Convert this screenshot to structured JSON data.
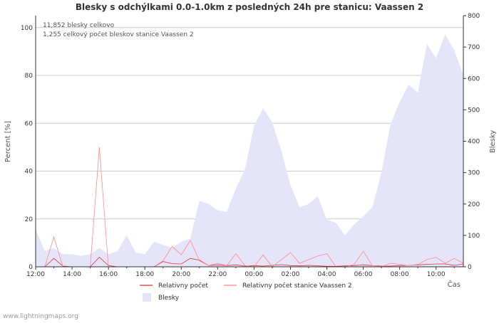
{
  "chart_data": {
    "type": "line",
    "title": "Blesky s odchýlkami 0.0-1.0km z posledných 24h pre stanicu: Vaassen 2",
    "annotations": [
      "11,852 blesky celkovo",
      "1,255 celkový počet bleskov stanice Vaassen 2"
    ],
    "ylabel_left": "Percent   [%]",
    "ylabel_right": "Blesky",
    "xlabel": "Čas",
    "x_tick_labels": [
      "12:00",
      "14:00",
      "16:00",
      "18:00",
      "20:00",
      "22:00",
      "00:00",
      "02:00",
      "04:00",
      "06:00",
      "08:00",
      "10:00"
    ],
    "y_left_ticks": [
      "0",
      "20",
      "40",
      "60",
      "80",
      "100"
    ],
    "y_right_ticks": [
      "0",
      "100",
      "200",
      "300",
      "400",
      "500",
      "600",
      "700",
      "800"
    ],
    "ylim_left": [
      0,
      105
    ],
    "ylim_right": [
      0,
      800
    ],
    "x_range_hours": [
      0,
      23.5
    ],
    "series": [
      {
        "name": "Blesky",
        "kind": "area",
        "axis": "right",
        "color": "#e5e5fa",
        "x": [
          0,
          0.5,
          1,
          1.5,
          2,
          2.5,
          3,
          3.5,
          4,
          4.5,
          5,
          5.5,
          6,
          6.5,
          7,
          7.5,
          8,
          8.5,
          9,
          9.5,
          10,
          10.5,
          11,
          11.5,
          12,
          12.5,
          13,
          13.5,
          14,
          14.5,
          15,
          15.5,
          16,
          16.5,
          17,
          17.5,
          18,
          18.5,
          19,
          19.5,
          20,
          20.5,
          21,
          21.5,
          22,
          22.5,
          23,
          23.5
        ],
        "values": [
          120,
          50,
          60,
          40,
          40,
          35,
          40,
          60,
          40,
          50,
          100,
          45,
          40,
          80,
          70,
          60,
          80,
          90,
          210,
          200,
          180,
          175,
          250,
          310,
          450,
          505,
          460,
          370,
          260,
          190,
          200,
          225,
          150,
          140,
          100,
          135,
          160,
          190,
          300,
          455,
          525,
          580,
          555,
          710,
          665,
          740,
          690,
          610
        ]
      },
      {
        "name": "Relativny počet",
        "kind": "line",
        "axis": "left",
        "color": "#e03030",
        "x": [
          0.5,
          1,
          1.5,
          2,
          2.5,
          3,
          3.5,
          4,
          4.5,
          5,
          5.5,
          6,
          6.5,
          7,
          7.5,
          8,
          8.5,
          9,
          9.5,
          10,
          10.5,
          11,
          11.5,
          12,
          12.5,
          13,
          13.5,
          14,
          14.5,
          15,
          15.5,
          16,
          16.5,
          17,
          17.5,
          18,
          18.5,
          19,
          19.5,
          20,
          20.5,
          21,
          21.5,
          22,
          22.5,
          23,
          23.5
        ],
        "values": [
          0,
          3.5,
          0.3,
          0,
          0,
          0,
          4,
          0.5,
          0,
          0,
          0,
          0,
          0,
          2.2,
          1.3,
          1.2,
          3.5,
          2.8,
          0.5,
          0.8,
          0.5,
          0.8,
          0.3,
          0.5,
          0.3,
          0.6,
          0.9,
          0.5,
          0.4,
          0.6,
          0.4,
          0.2,
          0.2,
          0.4,
          0.5,
          0.8,
          0.5,
          0.3,
          0.3,
          0.5,
          0.6,
          0.8,
          1,
          1.2,
          1.2,
          0.6,
          1.2
        ]
      },
      {
        "name": "Relativny počet stanice Vaassen 2",
        "kind": "line",
        "axis": "left",
        "color": "#ff8888",
        "x": [
          0.5,
          1,
          1.5,
          2,
          2.5,
          3,
          3.5,
          4,
          4.5,
          5,
          5.5,
          6,
          6.5,
          7,
          7.5,
          8,
          8.5,
          9,
          9.5,
          10,
          10.5,
          11,
          11.5,
          12,
          12.5,
          13,
          13.5,
          14,
          14.5,
          15,
          15.5,
          16,
          16.5,
          17,
          17.5,
          18,
          18.5,
          19,
          19.5,
          20,
          20.5,
          21,
          21.5,
          22,
          22.5,
          23,
          23.5
        ],
        "values": [
          0,
          12.5,
          0,
          0,
          0,
          0,
          50,
          0,
          0,
          0,
          0,
          0,
          0,
          2.5,
          8.5,
          5,
          11,
          2.5,
          0.5,
          1.5,
          0.5,
          5.5,
          0.5,
          0,
          5,
          0,
          3,
          6,
          1.5,
          3,
          4.5,
          5.5,
          0,
          0,
          1,
          6.5,
          0.5,
          0,
          1.5,
          1,
          0.5,
          1,
          3,
          4,
          1.5,
          3.5,
          1.5
        ]
      }
    ],
    "legend": [
      {
        "label": "Relativny počet",
        "color": "#e03030",
        "kind": "line"
      },
      {
        "label": "Relativny počet stanice Vaassen 2",
        "color": "#ff8888",
        "kind": "line"
      },
      {
        "label": "Blesky",
        "color": "#e5e5fa",
        "kind": "area"
      }
    ],
    "legend_position": "bottom",
    "grid": true
  },
  "footer": {
    "source": "www.lightningmaps.org"
  }
}
